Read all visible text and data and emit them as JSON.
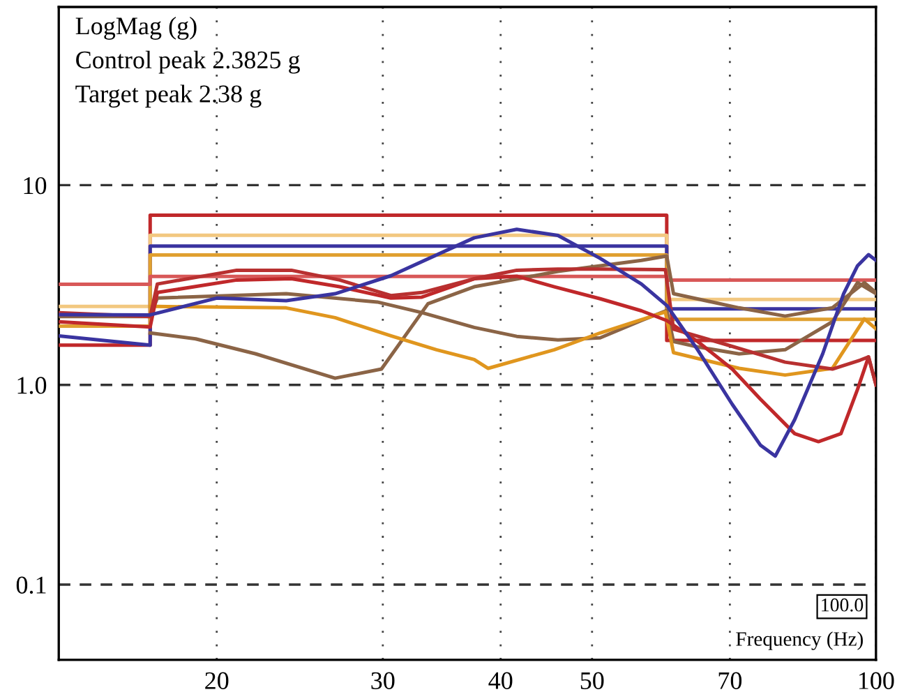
{
  "chart_data": {
    "type": "line",
    "xlabel": "Frequency (Hz)",
    "log": "xy",
    "grid": true,
    "marker": "none",
    "line_style": "solid",
    "xlim": [
      13.6,
      100
    ],
    "ylim": [
      0.042,
      78
    ],
    "xticks": [
      20,
      30,
      40,
      50,
      70,
      100
    ],
    "yticks": [
      10,
      {
        "value": 1,
        "label": "1.0"
      },
      0.1
    ],
    "annotations": [
      "LogMag (g)",
      "Control peak 2.3825 g",
      "Target peak 2.38 g",
      "100.0"
    ],
    "series": [
      {
        "color": "#c0282a",
        "x": [
          13.6,
          17,
          17,
          60,
          60,
          100
        ],
        "values": [
          1.58,
          1.58,
          7.07,
          7.07,
          1.67,
          1.67
        ]
      },
      {
        "color": "#f2c880",
        "x": [
          13.6,
          17,
          17,
          60,
          60,
          100
        ],
        "values": [
          2.47,
          2.47,
          5.61,
          5.61,
          2.68,
          2.68
        ]
      },
      {
        "color": "#3a34a0",
        "x": [
          13.6,
          17,
          17,
          60,
          60,
          100
        ],
        "values": [
          1.76,
          1.58,
          4.95,
          4.95,
          2.4,
          2.4
        ]
      },
      {
        "color": "#e0a030",
        "x": [
          13.6,
          17,
          17,
          60,
          60,
          100
        ],
        "values": [
          1.97,
          1.97,
          4.47,
          4.47,
          2.13,
          2.13
        ]
      },
      {
        "color": "#d85858",
        "x": [
          13.6,
          17,
          17,
          60,
          60,
          100
        ],
        "values": [
          3.19,
          3.19,
          3.49,
          3.49,
          3.35,
          3.35
        ]
      },
      {
        "color": "#8b6446",
        "x": [
          13.6,
          17,
          17.3,
          23.7,
          29.6,
          33,
          37.5,
          41.6,
          46,
          51,
          56.4,
          60,
          61,
          64.7,
          71.6,
          80.1,
          89.9,
          95.6,
          100
        ],
        "values": [
          2.2,
          2.2,
          2.72,
          2.86,
          2.6,
          2.3,
          1.94,
          1.75,
          1.68,
          1.72,
          2.1,
          2.36,
          1.65,
          1.55,
          1.43,
          1.5,
          2.07,
          3.25,
          2.86
        ]
      },
      {
        "color": "#8b6446",
        "x": [
          17,
          19,
          22,
          26.7,
          29.9,
          33.5,
          37.5,
          46,
          56.4,
          60,
          61,
          71.6,
          80.1,
          89.9,
          97.2,
          100
        ],
        "values": [
          1.82,
          1.7,
          1.43,
          1.08,
          1.2,
          2.55,
          3.1,
          3.7,
          4.2,
          4.42,
          2.86,
          2.43,
          2.21,
          2.43,
          3.25,
          2.9
        ]
      },
      {
        "color": "#e0961e",
        "x": [
          17,
          17.3,
          23.7,
          26.7,
          30.6,
          34.2,
          37.5,
          38.8,
          45.6,
          51,
          59.8,
          61,
          71.6,
          80.1,
          89.9,
          97.2,
          100
        ],
        "values": [
          2.47,
          2.47,
          2.43,
          2.17,
          1.76,
          1.5,
          1.34,
          1.21,
          1.5,
          1.82,
          2.32,
          1.45,
          1.21,
          1.12,
          1.21,
          2.14,
          1.91
        ]
      },
      {
        "color": "#c0282a",
        "x": [
          13.6,
          17,
          17.3,
          21,
          24,
          27,
          30.6,
          33,
          37.5,
          41.6,
          45.6,
          51,
          56.4,
          60,
          64.7,
          70.4,
          75.4,
          82,
          86.9,
          91.8,
          95.6,
          98.2,
          100
        ],
        "values": [
          2.07,
          1.95,
          2.9,
          3.35,
          3.4,
          3.1,
          2.72,
          2.75,
          3.4,
          3.5,
          3.1,
          2.7,
          2.35,
          2.1,
          1.65,
          1.2,
          0.85,
          0.57,
          0.52,
          0.57,
          0.95,
          1.38,
          1.0
        ]
      },
      {
        "color": "#b83030",
        "x": [
          13.6,
          17,
          17.3,
          21,
          24,
          27,
          30.6,
          33,
          37.5,
          41.6,
          46,
          51,
          59.8,
          61,
          68.5,
          80.1,
          89.9,
          96.2,
          98.2,
          100
        ],
        "values": [
          2.3,
          2.2,
          3.2,
          3.75,
          3.75,
          3.35,
          2.8,
          2.9,
          3.4,
          3.75,
          3.8,
          3.8,
          3.78,
          1.9,
          1.62,
          1.3,
          1.2,
          1.33,
          1.38,
          1.0
        ]
      },
      {
        "color": "#3a34a0",
        "x": [
          13.6,
          17,
          20,
          23.7,
          26.7,
          30.6,
          37.5,
          41.6,
          46,
          51,
          56.4,
          60,
          64.7,
          70.4,
          75.4,
          78.2,
          82,
          87.8,
          92.4,
          95.6,
          98.2,
          100
        ],
        "values": [
          2.25,
          2.24,
          2.72,
          2.64,
          2.86,
          3.52,
          5.45,
          6.01,
          5.6,
          4.3,
          3.2,
          2.5,
          1.5,
          0.8,
          0.5,
          0.44,
          0.67,
          1.43,
          2.86,
          3.95,
          4.49,
          4.2
        ]
      }
    ]
  }
}
